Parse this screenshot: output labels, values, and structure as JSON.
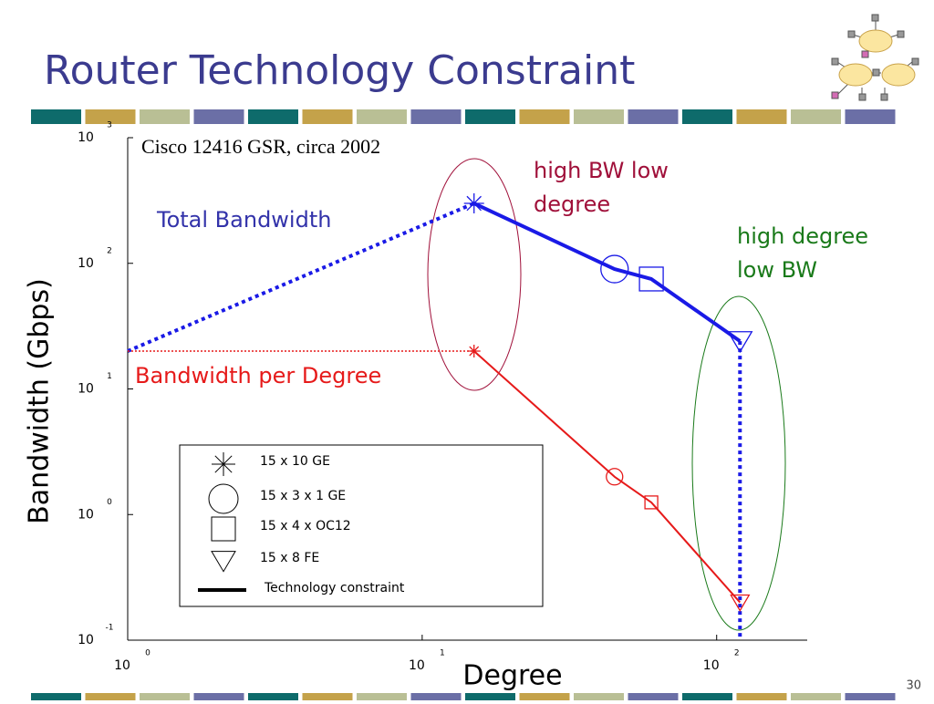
{
  "slide_title": "Router Technology Constraint",
  "page_number": "30",
  "chart_data": {
    "type": "line",
    "subtitle": "Cisco 12416 GSR, circa 2002",
    "x_label": "Degree",
    "y_label": "Bandwidth (Gbps)",
    "log_x": true,
    "log_y": true,
    "x": [
      1,
      15,
      45,
      60,
      120
    ],
    "series": [
      {
        "name": "Total Bandwidth",
        "color": "#1a1ae6",
        "values": [
          20,
          300,
          90,
          75,
          24
        ]
      },
      {
        "name": "Bandwidth per Degree",
        "color": "#e61a1a",
        "values": [
          20,
          20,
          2,
          1.25,
          0.2
        ]
      }
    ],
    "markers": [
      null,
      "star",
      "circle",
      "square",
      "triangle"
    ],
    "xlim": [
      1,
      203
    ],
    "ylim": [
      0.1,
      1000
    ],
    "xticks": [
      {
        "value": 1,
        "label": "10",
        "exponent": "0"
      },
      {
        "value": 10,
        "label": "10",
        "exponent": "1"
      },
      {
        "value": 100,
        "label": "10",
        "exponent": "2"
      }
    ],
    "yticks": [
      {
        "value": 0.1,
        "label": "10",
        "exponent": "-1"
      },
      {
        "value": 1,
        "label": "10",
        "exponent": "0"
      },
      {
        "value": 10,
        "label": "10",
        "exponent": "1"
      },
      {
        "value": 100,
        "label": "10",
        "exponent": "2"
      },
      {
        "value": 1000,
        "label": "10",
        "exponent": "3"
      }
    ],
    "annotations": [
      {
        "lines": [
          "high BW low",
          "degree"
        ],
        "color": "#a0103a"
      },
      {
        "lines": [
          "high degree",
          "low BW"
        ],
        "color": "#1a7a1a"
      }
    ],
    "legend": [
      {
        "marker": "star",
        "label": "15 x 10 GE"
      },
      {
        "marker": "circle",
        "label": "15 x 3 x 1 GE"
      },
      {
        "marker": "square",
        "label": "15 x 4 x OC12"
      },
      {
        "marker": "triangle",
        "label": "15 x 8 FE"
      },
      {
        "marker": "line",
        "label": "Technology constraint"
      }
    ]
  }
}
